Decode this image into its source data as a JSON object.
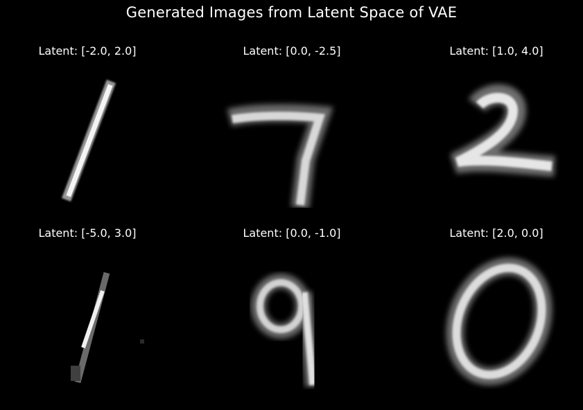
{
  "figure": {
    "title": "Generated Images from Latent Space of VAE",
    "background": "#000000",
    "text_color": "#ffffff",
    "colormap": "gray"
  },
  "panels": [
    {
      "title": "Latent: [-2.0, 2.0]",
      "latent": [
        -2.0,
        2.0
      ],
      "digit": "1",
      "icon": "digit-one-image"
    },
    {
      "title": "Latent: [0.0, -2.5]",
      "latent": [
        0.0,
        -2.5
      ],
      "digit": "7",
      "icon": "digit-seven-image"
    },
    {
      "title": "Latent: [1.0, 4.0]",
      "latent": [
        1.0,
        4.0
      ],
      "digit": "2",
      "icon": "digit-two-image"
    },
    {
      "title": "Latent: [-5.0, 3.0]",
      "latent": [
        -5.0,
        3.0
      ],
      "digit": "1",
      "icon": "digit-one-faint-image"
    },
    {
      "title": "Latent: [0.0, -1.0]",
      "latent": [
        0.0,
        -1.0
      ],
      "digit": "9",
      "icon": "digit-nine-image"
    },
    {
      "title": "Latent: [2.0, 0.0]",
      "latent": [
        2.0,
        0.0
      ],
      "digit": "0",
      "icon": "digit-zero-image"
    }
  ]
}
